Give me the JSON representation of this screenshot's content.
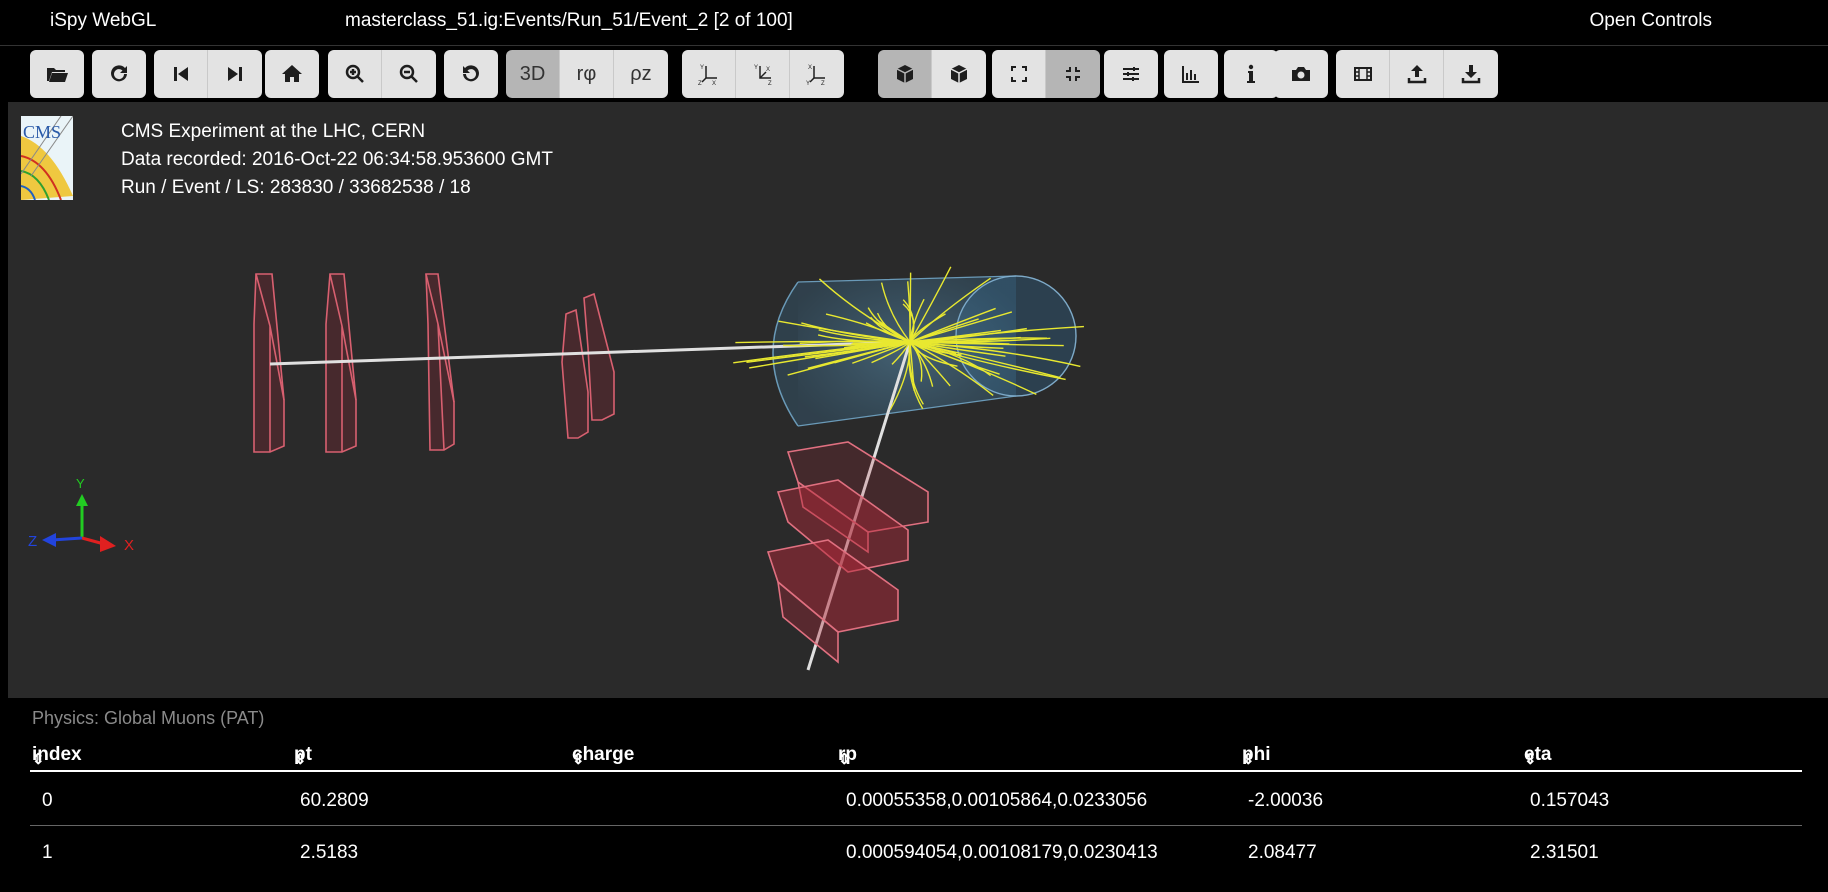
{
  "titlebar": {
    "app_name": "iSpy WebGL",
    "file_path": "masterclass_51.ig:Events/Run_51/Event_2 [2 of 100]",
    "open_controls": "Open Controls"
  },
  "toolbar": {
    "view_3d": "3D",
    "view_rphi": "rφ",
    "view_rhoz": "ρz",
    "icons": [
      "folder-open-icon",
      "reload-icon",
      "previous-event-icon",
      "next-event-icon",
      "home-icon",
      "zoom-in-icon",
      "zoom-out-icon",
      "reset-icon",
      "view-yz-icon",
      "view-yx-icon",
      "view-xz-icon",
      "perspective-icon",
      "orthographic-icon",
      "enter-fullscreen-icon",
      "exit-fullscreen-icon",
      "settings-icon",
      "chart-icon",
      "info-icon",
      "camera-icon",
      "film-icon",
      "upload-icon",
      "download-icon"
    ],
    "active_view": "3D"
  },
  "event_info": {
    "experiment": "CMS Experiment at the LHC, CERN",
    "recorded": "Data recorded: 2016-Oct-22 06:34:58.953600 GMT",
    "run_event": "Run / Event / LS: 283830 / 33682538 / 18"
  },
  "axes": {
    "y": "Y",
    "z": "Z",
    "x": "X"
  },
  "colors": {
    "background": "#2a2a2a",
    "tracks": "#e8e830",
    "muon_chambers": "#c83040",
    "tracker": "#4a7fa8"
  },
  "table": {
    "title": "Physics: Global Muons (PAT)",
    "columns": [
      "index",
      "pt",
      "charge",
      "rp",
      "phi",
      "eta"
    ],
    "rows": [
      {
        "index": "0",
        "pt": "60.2809",
        "charge": "",
        "rp": "0.00055358,0.00105864,0.0233056",
        "phi": "-2.00036",
        "eta": "0.157043"
      },
      {
        "index": "1",
        "pt": "2.5183",
        "charge": "",
        "rp": "0.000594054,0.00108179,0.0230413",
        "phi": "2.08477",
        "eta": "2.31501"
      }
    ]
  }
}
